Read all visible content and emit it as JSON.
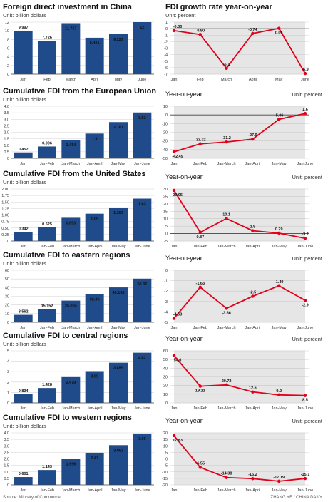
{
  "footer": {
    "source": "Source: Ministry of Commerce",
    "credit": "ZHANG YE / CHINA DAILY"
  },
  "colors": {
    "bar": "#1f4b8a",
    "line": "#e2001a",
    "shade": "#e6e6e6"
  },
  "chart_data": [
    {
      "type": "bar",
      "title": "Foreign direct investment in China",
      "unit": "Unit: billion dollars",
      "categories": [
        "Jan",
        "Feb",
        "March",
        "April",
        "May",
        "June"
      ],
      "values": [
        9.997,
        7.726,
        11.757,
        8.401,
        9.229,
        12
      ],
      "value_labels": [
        "9.997",
        "7.726",
        "11.757",
        "8.401",
        "9.229",
        "12"
      ],
      "ylim": [
        0,
        12
      ],
      "yticks": [
        0,
        2,
        4,
        6,
        8,
        10,
        12
      ],
      "grid": true
    },
    {
      "type": "line",
      "title": "FDI growth rate year-on-year",
      "unit": "Unit: percent",
      "categories": [
        "Jan",
        "Feb",
        "March",
        "April",
        "May",
        "June"
      ],
      "values": [
        -0.3,
        -0.9,
        -6.1,
        -0.74,
        0.05,
        -6.9
      ],
      "value_labels": [
        "-0.30",
        "-0.90",
        "-6.1",
        "-0.74",
        "0.05",
        "-6.9"
      ],
      "ylim": [
        -7,
        1
      ],
      "yticks": [
        1,
        0,
        -1,
        -2,
        -3,
        -4,
        -5,
        -6,
        -7
      ],
      "grid": true
    },
    {
      "type": "bar",
      "title": "Cumulative FDI from the European Union",
      "unit": "Unit: billion dollars",
      "categories": [
        "Jan",
        "Jan-Feb",
        "Jan-March",
        "Jan-April",
        "Jan-May",
        "Jan-June"
      ],
      "values": [
        0.452,
        0.906,
        1.414,
        1.9,
        2.781,
        3.52
      ],
      "value_labels": [
        "0.452",
        "0.906",
        "1.414",
        "1.9",
        "2.781",
        "3.52"
      ],
      "ylim": [
        0,
        4
      ],
      "yticks": [
        0,
        0.5,
        1.0,
        1.5,
        2.0,
        2.5,
        3.0,
        3.5,
        4.0
      ],
      "ytick_labels": [
        "0",
        "0.5",
        "1.0",
        "1.5",
        "2.0",
        "2.5",
        "3.0",
        "3.5",
        "4.0"
      ],
      "grid": true
    },
    {
      "type": "line",
      "title": "Year-on-year",
      "unit": "Unit: percent",
      "categories": [
        "Jan",
        "Jan-Feb",
        "Jan-March",
        "Jan-April",
        "Jan-May",
        "Jan-June"
      ],
      "values": [
        -42.49,
        -33.32,
        -31.2,
        -27.9,
        -5.06,
        1.6
      ],
      "value_labels": [
        "-42.49",
        "-33.32",
        "-31.2",
        "-27.9",
        "-5.06",
        "1.6"
      ],
      "ylim": [
        -50,
        10
      ],
      "yticks": [
        10,
        0,
        -10,
        -20,
        -30,
        -40,
        -50
      ],
      "grid": true
    },
    {
      "type": "bar",
      "title": "Cumulative FDI from the United States",
      "unit": "Unit: billion dollars",
      "categories": [
        "Jan",
        "Jan-Feb",
        "Jan-March",
        "Jan-April",
        "Jan-May",
        "Jan-June"
      ],
      "values": [
        0.342,
        0.525,
        0.893,
        1.05,
        1.289,
        1.63
      ],
      "value_labels": [
        "0.342",
        "0.525",
        "0.893",
        "1.05",
        "1.289",
        "1.63"
      ],
      "ylim": [
        0,
        2
      ],
      "yticks": [
        0,
        0.25,
        0.5,
        0.75,
        1.0,
        1.25,
        1.5,
        1.75,
        2.0
      ],
      "ytick_labels": [
        "0",
        "0.25",
        "0.50",
        "0.75",
        "1.00",
        "1.25",
        "1.50",
        "1.75",
        "2.00"
      ],
      "grid": true
    },
    {
      "type": "line",
      "title": "Year-on-year",
      "unit": "Unit: percent",
      "categories": [
        "Jan",
        "Jan-Feb",
        "Jan-March",
        "Jan-April",
        "Jan-May",
        "Jan-June"
      ],
      "values": [
        29.05,
        0.87,
        10.1,
        1.9,
        0.29,
        -3.2
      ],
      "value_labels": [
        "29.05",
        "0.87",
        "10.1",
        "1.9",
        "0.29",
        "-3.2"
      ],
      "ylim": [
        -5,
        30
      ],
      "yticks": [
        30,
        25,
        20,
        15,
        10,
        5,
        0,
        -5
      ],
      "grid": true
    },
    {
      "type": "bar",
      "title": "Cumulative FDI to eastern regions",
      "unit": "Unit: billion dollars",
      "categories": [
        "Jan",
        "Jan-Feb",
        "Jan-March",
        "Jan-April",
        "Jan-May",
        "Jan-June"
      ],
      "values": [
        8.562,
        15.152,
        25.004,
        32.36,
        40.198,
        50.32
      ],
      "value_labels": [
        "8.562",
        "15.152",
        "25.004",
        "32.36",
        "40.198",
        "50.32"
      ],
      "ylim": [
        0,
        60
      ],
      "yticks": [
        0,
        10,
        20,
        30,
        40,
        50,
        60
      ],
      "grid": true
    },
    {
      "type": "line",
      "title": "Year-on-year",
      "unit": "Unit: percent",
      "categories": [
        "Jan",
        "Jan-Feb",
        "Jan-March",
        "Jan-April",
        "Jan-May",
        "Jan-June"
      ],
      "values": [
        -4.63,
        -1.63,
        -3.66,
        -2.5,
        -1.49,
        -2.9
      ],
      "value_labels": [
        "-4.63",
        "-1.63",
        "-3.66",
        "-2.5",
        "-1.49",
        "-2.9"
      ],
      "ylim": [
        -5,
        0
      ],
      "yticks": [
        0,
        -1,
        -2,
        -3,
        -4,
        -5
      ],
      "grid": true
    },
    {
      "type": "bar",
      "title": "Cumulative FDI to central regions",
      "unit": "Unit: billion dollars",
      "categories": [
        "Jan",
        "Jan-Feb",
        "Jan-March",
        "Jan-April",
        "Jan-May",
        "Jan-June"
      ],
      "values": [
        0.834,
        1.428,
        2.479,
        3.05,
        3.859,
        4.82
      ],
      "value_labels": [
        "0.834",
        "1.428",
        "2.479",
        "3.05",
        "3.859",
        "4.82"
      ],
      "ylim": [
        0,
        5
      ],
      "yticks": [
        0,
        1,
        2,
        3,
        4,
        5
      ],
      "grid": true
    },
    {
      "type": "line",
      "title": "Year-on-year",
      "unit": "Unit: percent",
      "categories": [
        "Jan",
        "Jan-Feb",
        "Jan-March",
        "Jan-April",
        "Jan-May",
        "Jan-June"
      ],
      "values": [
        54.6,
        19.21,
        20.72,
        12.6,
        9.2,
        8.5
      ],
      "value_labels": [
        "54.6",
        "19.21",
        "20.72",
        "12.6",
        "9.2",
        "8.5"
      ],
      "ylim": [
        0,
        60
      ],
      "yticks": [
        60,
        50,
        40,
        30,
        20,
        10,
        0
      ],
      "grid": true
    },
    {
      "type": "bar",
      "title": "Cumulative FDI to western regions",
      "unit": "Unit: billion dollars",
      "categories": [
        "Jan",
        "Jan-Feb",
        "Jan-March",
        "Jan-April",
        "Jan-May",
        "Jan-June"
      ],
      "values": [
        0.601,
        1.143,
        1.996,
        2.47,
        3.053,
        3.95
      ],
      "value_labels": [
        "0.601",
        "1.143",
        "1.996",
        "2.47",
        "3.053",
        "3.95"
      ],
      "ylim": [
        0,
        4
      ],
      "yticks": [
        0,
        0.5,
        1.0,
        1.5,
        2.0,
        2.5,
        3.0,
        3.5,
        4.0
      ],
      "ytick_labels": [
        "0",
        "0.5",
        "1.0",
        "1.5",
        "2.0",
        "2.5",
        "3.0",
        "3.5",
        "4.0"
      ],
      "grid": true
    },
    {
      "type": "line",
      "title": "Year-on-year",
      "unit": "Unit: percent",
      "categories": [
        "Jan",
        "Jan-Feb",
        "Jan-March",
        "Jan-April",
        "Jan-May",
        "Jan-June"
      ],
      "values": [
        17.83,
        -6.55,
        -14.38,
        -15.2,
        -17.19,
        -15.1
      ],
      "value_labels": [
        "17.83",
        "-6.55",
        "-14.38",
        "-15.2",
        "-17.19",
        "-15.1"
      ],
      "ylim": [
        -20,
        20
      ],
      "yticks": [
        20,
        15,
        10,
        5,
        0,
        -5,
        -10,
        -15,
        -20
      ],
      "grid": true
    }
  ]
}
